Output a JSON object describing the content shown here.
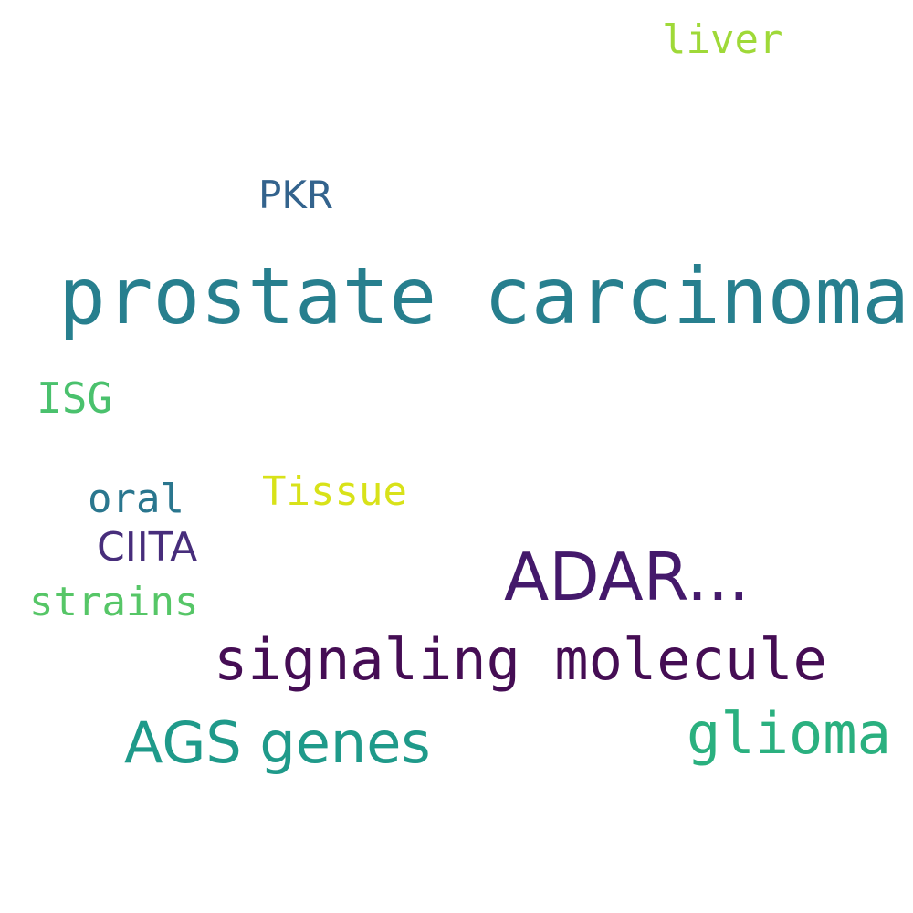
{
  "words": [
    {
      "id": "w-liver",
      "text": "liver",
      "color": "#9fd938"
    },
    {
      "id": "w-pkr",
      "text": "PKR",
      "color": "#33638d"
    },
    {
      "id": "w-prostate",
      "text": "prostate carcinoma",
      "color": "#277f8e"
    },
    {
      "id": "w-isg",
      "text": "ISG",
      "color": "#4ac16d"
    },
    {
      "id": "w-oral",
      "text": "oral",
      "color": "#2a768e"
    },
    {
      "id": "w-tissue",
      "text": "Tissue",
      "color": "#d8e219"
    },
    {
      "id": "w-ciita",
      "text": "CIITA",
      "color": "#472d7b"
    },
    {
      "id": "w-adar",
      "text": "ADAR...",
      "color": "#44196b"
    },
    {
      "id": "w-strains",
      "text": "strains",
      "color": "#56c667"
    },
    {
      "id": "w-signal",
      "text": "signaling molecule",
      "color": "#450d54"
    },
    {
      "id": "w-ags",
      "text": "AGS genes",
      "color": "#1f9a8a"
    },
    {
      "id": "w-glioma",
      "text": "glioma",
      "color": "#2ab07f"
    }
  ]
}
